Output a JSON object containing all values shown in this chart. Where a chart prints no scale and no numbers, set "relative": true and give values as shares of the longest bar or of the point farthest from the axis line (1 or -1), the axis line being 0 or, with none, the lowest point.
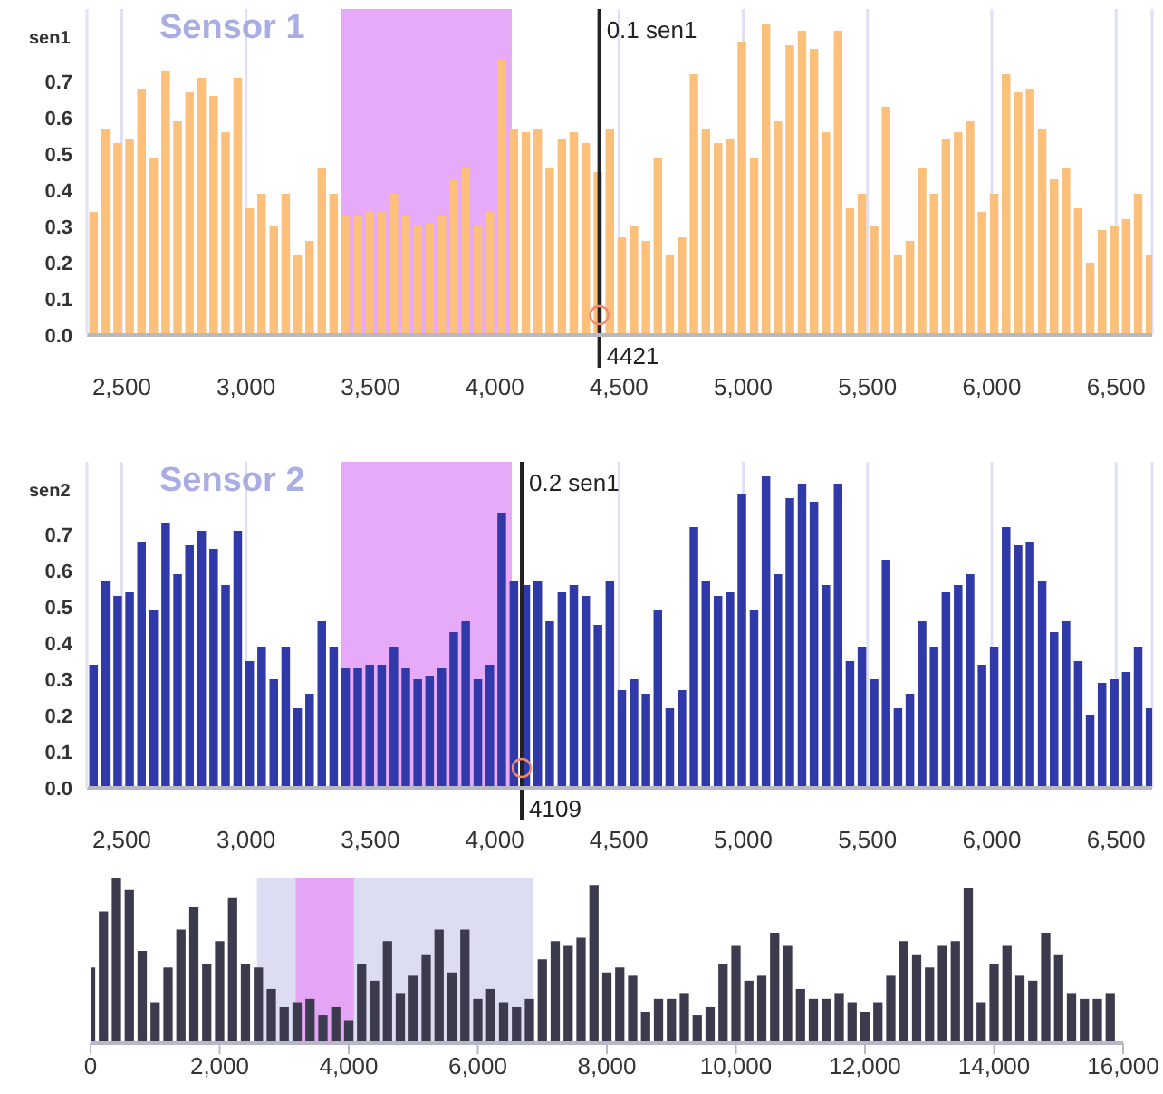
{
  "chart_data": [
    {
      "type": "bar",
      "title": "Sensor 1",
      "ylabel": "sen1",
      "color": "#fdc07b",
      "grid": "x",
      "x": [
        2386,
        2434,
        2483,
        2531,
        2579,
        2628,
        2676,
        2724,
        2772,
        2821,
        2869,
        2917,
        2966,
        3014,
        3062,
        3111,
        3159,
        3207,
        3255,
        3304,
        3352,
        3400,
        3449,
        3497,
        3545,
        3594,
        3642,
        3690,
        3738,
        3787,
        3835,
        3883,
        3932,
        3980,
        4028,
        4077,
        4125,
        4173,
        4221,
        4270,
        4318,
        4366,
        4415,
        4463,
        4511,
        4560,
        4608,
        4656,
        4704,
        4753,
        4801,
        4849,
        4898,
        4946,
        4994,
        5043,
        5091,
        5139,
        5187,
        5236,
        5284,
        5332,
        5381,
        5429,
        5477,
        5526,
        5574,
        5622,
        5670,
        5719,
        5767,
        5815,
        5864,
        5912,
        5960,
        6009,
        6057,
        6105,
        6153,
        6202,
        6250,
        6298,
        6347,
        6395,
        6443,
        6492,
        6540,
        6588,
        6636
      ],
      "values": [
        0.34,
        0.57,
        0.53,
        0.54,
        0.68,
        0.49,
        0.73,
        0.59,
        0.67,
        0.71,
        0.66,
        0.56,
        0.71,
        0.35,
        0.39,
        0.3,
        0.39,
        0.22,
        0.26,
        0.46,
        0.39,
        0.33,
        0.33,
        0.34,
        0.34,
        0.39,
        0.33,
        0.3,
        0.31,
        0.33,
        0.43,
        0.46,
        0.3,
        0.34,
        0.76,
        0.57,
        0.56,
        0.57,
        0.46,
        0.54,
        0.56,
        0.53,
        0.45,
        0.57,
        0.27,
        0.3,
        0.26,
        0.49,
        0.22,
        0.27,
        0.72,
        0.57,
        0.53,
        0.54,
        0.81,
        0.49,
        0.86,
        0.59,
        0.8,
        0.84,
        0.79,
        0.56,
        0.84,
        0.35,
        0.39,
        0.3,
        0.63,
        0.22,
        0.26,
        0.46,
        0.39,
        0.54,
        0.56,
        0.59,
        0.34,
        0.39,
        0.72,
        0.67,
        0.68,
        0.57,
        0.43,
        0.46,
        0.35,
        0.2,
        0.29,
        0.3,
        0.32,
        0.39,
        0.22
      ],
      "xlim": [
        2360,
        6645
      ],
      "xticks": [
        {
          "value": 2500,
          "label": "2,500"
        },
        {
          "value": 3000,
          "label": "3,000"
        },
        {
          "value": 3500,
          "label": "3,500"
        },
        {
          "value": 4000,
          "label": "4,000"
        },
        {
          "value": 4500,
          "label": "4,500"
        },
        {
          "value": 5000,
          "label": "5,000"
        },
        {
          "value": 5500,
          "label": "5,500"
        },
        {
          "value": 6000,
          "label": "6,000"
        },
        {
          "value": 6500,
          "label": "6,500"
        }
      ],
      "ylim": [
        0,
        0.9
      ],
      "yticks": [
        {
          "value": 0,
          "label": "0.0"
        },
        0.1,
        0.2,
        0.3,
        0.4,
        0.5,
        0.6,
        0.7
      ],
      "bands": [
        {
          "axis": "x",
          "from": 3383,
          "to": 4069,
          "color": "#e6aaf8"
        }
      ],
      "ref_lines": [
        {
          "axis": "x",
          "value": 4421,
          "label": "0.1 sen1",
          "color": "#222222"
        }
      ],
      "annotations": [
        "4421"
      ]
    },
    {
      "type": "bar",
      "title": "Sensor 2",
      "ylabel": "sen2",
      "color": "#2f3aa8",
      "grid": "x",
      "x": [
        2386,
        2434,
        2483,
        2531,
        2579,
        2628,
        2676,
        2724,
        2772,
        2821,
        2869,
        2917,
        2966,
        3014,
        3062,
        3111,
        3159,
        3207,
        3255,
        3304,
        3352,
        3400,
        3449,
        3497,
        3545,
        3594,
        3642,
        3690,
        3738,
        3787,
        3835,
        3883,
        3932,
        3980,
        4028,
        4077,
        4125,
        4173,
        4221,
        4270,
        4318,
        4366,
        4415,
        4463,
        4511,
        4560,
        4608,
        4656,
        4704,
        4753,
        4801,
        4849,
        4898,
        4946,
        4994,
        5043,
        5091,
        5139,
        5187,
        5236,
        5284,
        5332,
        5381,
        5429,
        5477,
        5526,
        5574,
        5622,
        5670,
        5719,
        5767,
        5815,
        5864,
        5912,
        5960,
        6009,
        6057,
        6105,
        6153,
        6202,
        6250,
        6298,
        6347,
        6395,
        6443,
        6492,
        6540,
        6588,
        6636
      ],
      "values": [
        0.34,
        0.57,
        0.53,
        0.54,
        0.68,
        0.49,
        0.73,
        0.59,
        0.67,
        0.71,
        0.66,
        0.56,
        0.71,
        0.35,
        0.39,
        0.3,
        0.39,
        0.22,
        0.26,
        0.46,
        0.39,
        0.33,
        0.33,
        0.34,
        0.34,
        0.39,
        0.33,
        0.3,
        0.31,
        0.33,
        0.43,
        0.46,
        0.3,
        0.34,
        0.76,
        0.57,
        0.56,
        0.57,
        0.46,
        0.54,
        0.56,
        0.53,
        0.45,
        0.57,
        0.27,
        0.3,
        0.26,
        0.49,
        0.22,
        0.27,
        0.72,
        0.57,
        0.53,
        0.54,
        0.81,
        0.49,
        0.86,
        0.59,
        0.8,
        0.84,
        0.79,
        0.56,
        0.84,
        0.35,
        0.39,
        0.3,
        0.63,
        0.22,
        0.26,
        0.46,
        0.39,
        0.54,
        0.56,
        0.59,
        0.34,
        0.39,
        0.72,
        0.67,
        0.68,
        0.57,
        0.43,
        0.46,
        0.35,
        0.2,
        0.29,
        0.3,
        0.32,
        0.39,
        0.22
      ],
      "xlim": [
        2360,
        6645
      ],
      "xticks": [
        {
          "value": 2500,
          "label": "2,500"
        },
        {
          "value": 3000,
          "label": "3,000"
        },
        {
          "value": 3500,
          "label": "3,500"
        },
        {
          "value": 4000,
          "label": "4,000"
        },
        {
          "value": 4500,
          "label": "4,500"
        },
        {
          "value": 5000,
          "label": "5,000"
        },
        {
          "value": 5500,
          "label": "5,500"
        },
        {
          "value": 6000,
          "label": "6,000"
        },
        {
          "value": 6500,
          "label": "6,500"
        }
      ],
      "ylim": [
        0,
        0.9
      ],
      "yticks": [
        {
          "value": 0,
          "label": "0.0"
        },
        0.1,
        0.2,
        0.3,
        0.4,
        0.5,
        0.6,
        0.7
      ],
      "bands": [
        {
          "axis": "x",
          "from": 3383,
          "to": 4069,
          "color": "#e6aaf8"
        }
      ],
      "ref_lines": [
        {
          "axis": "x",
          "value": 4109,
          "label": "0.2 sen1",
          "color": "#222222"
        }
      ],
      "annotations": [
        "4109"
      ]
    },
    {
      "type": "bar",
      "relative": true,
      "color": "#3b3b4d",
      "x": [
        0,
        200,
        400,
        600,
        800,
        1000,
        1200,
        1400,
        1600,
        1800,
        2000,
        2200,
        2400,
        2600,
        2800,
        3000,
        3200,
        3400,
        3600,
        3800,
        4000,
        4200,
        4400,
        4600,
        4800,
        5000,
        5200,
        5400,
        5600,
        5800,
        6000,
        6200,
        6400,
        6600,
        6800,
        7000,
        7200,
        7400,
        7600,
        7800,
        8000,
        8200,
        8400,
        8600,
        8800,
        9000,
        9200,
        9400,
        9600,
        9800,
        10000,
        10200,
        10400,
        10600,
        10800,
        11000,
        11200,
        11400,
        11600,
        11800,
        12000,
        12200,
        12400,
        12600,
        12800,
        13000,
        13200,
        13400,
        13600,
        13800,
        14000,
        14200,
        14400,
        14600,
        14800,
        15000,
        15200,
        15400,
        15600,
        15800
      ],
      "values": [
        0.46,
        0.8,
        1,
        0.93,
        0.56,
        0.25,
        0.46,
        0.69,
        0.83,
        0.48,
        0.62,
        0.88,
        0.48,
        0.46,
        0.33,
        0.22,
        0.25,
        0.27,
        0.17,
        0.22,
        0.14,
        0.48,
        0.38,
        0.62,
        0.3,
        0.41,
        0.54,
        0.69,
        0.43,
        0.69,
        0.27,
        0.33,
        0.25,
        0.22,
        0.27,
        0.51,
        0.62,
        0.59,
        0.64,
        0.96,
        0.43,
        0.46,
        0.41,
        0.19,
        0.27,
        0.27,
        0.3,
        0.17,
        0.22,
        0.48,
        0.59,
        0.38,
        0.41,
        0.67,
        0.59,
        0.33,
        0.27,
        0.27,
        0.3,
        0.25,
        0.19,
        0.25,
        0.41,
        0.62,
        0.54,
        0.46,
        0.59,
        0.62,
        0.94,
        0.25,
        0.48,
        0.59,
        0.41,
        0.38,
        0.67,
        0.54,
        0.3,
        0.27,
        0.27,
        0.3
      ],
      "xlim": [
        0,
        16000
      ],
      "xticks": [
        0,
        {
          "value": 2000,
          "label": "2,000"
        },
        {
          "value": 4000,
          "label": "4,000"
        },
        {
          "value": 6000,
          "label": "6,000"
        },
        {
          "value": 8000,
          "label": "8,000"
        },
        {
          "value": 10000,
          "label": "10,000"
        },
        {
          "value": 12000,
          "label": "12,000"
        },
        {
          "value": 14000,
          "label": "14,000"
        },
        {
          "value": 16000,
          "label": "16,000"
        }
      ],
      "bands": [
        {
          "axis": "x",
          "from": 2577,
          "to": 6858,
          "color": "#dcdcf2"
        },
        {
          "axis": "x",
          "from": 3177,
          "to": 4080,
          "color": "#e4a6f4"
        }
      ]
    }
  ]
}
